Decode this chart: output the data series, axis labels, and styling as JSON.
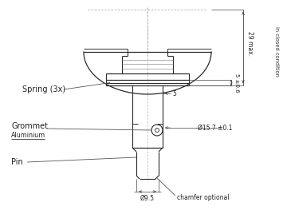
{
  "bg_color": "#ffffff",
  "line_color": "#2a2a2a",
  "dim_color": "#444444",
  "dashed_color": "#999999",
  "labels": {
    "spring": "Spring (3x)",
    "grommet": "Grommet",
    "aluminium": "Aluminium",
    "pin": "Pin",
    "chamfer": "chamfer optional",
    "dim_29": "29 max.",
    "dim_s": "5 ±0.6",
    "dim_5": "5",
    "dim_dia157": "Ø15.7 ±0.1",
    "dim_dia95": "Ø9.5",
    "in_closed": "in closed condition"
  }
}
